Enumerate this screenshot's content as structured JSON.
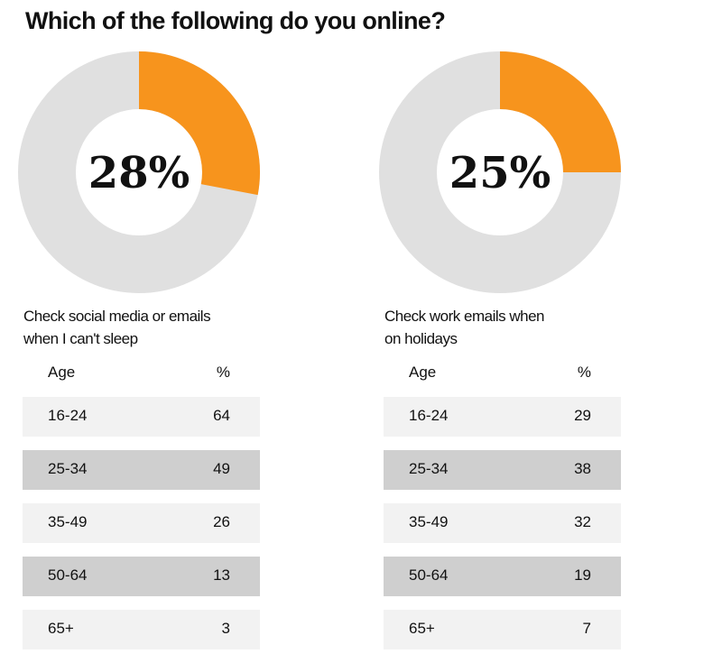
{
  "title": "Which of the following do you online?",
  "colors": {
    "highlight": "#f7941d",
    "remainder": "#e0e0e0",
    "row_light": "#f2f2f2",
    "row_dark": "#cfcfcf"
  },
  "chart_data": [
    {
      "type": "pie",
      "percent_label": "28%",
      "value": 28,
      "caption_lines": [
        "Check social media or emails",
        "when I can't sleep"
      ],
      "table": {
        "type": "table",
        "columns": [
          "Age",
          "%"
        ],
        "rows": [
          {
            "age": "16-24",
            "value": "64"
          },
          {
            "age": "25-34",
            "value": "49"
          },
          {
            "age": "35-49",
            "value": "26"
          },
          {
            "age": "50-64",
            "value": "13"
          },
          {
            "age": "65+",
            "value": "3"
          }
        ]
      }
    },
    {
      "type": "pie",
      "percent_label": "25%",
      "value": 25,
      "caption_lines": [
        "Check work emails when",
        "on holidays"
      ],
      "table": {
        "type": "table",
        "columns": [
          "Age",
          "%"
        ],
        "rows": [
          {
            "age": "16-24",
            "value": "29"
          },
          {
            "age": "25-34",
            "value": "38"
          },
          {
            "age": "35-49",
            "value": "32"
          },
          {
            "age": "50-64",
            "value": "19"
          },
          {
            "age": "65+",
            "value": "7"
          }
        ]
      }
    }
  ]
}
